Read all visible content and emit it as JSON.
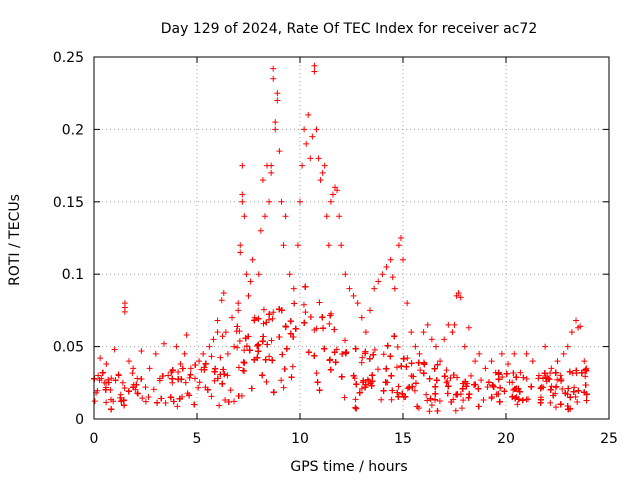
{
  "chart_data": {
    "type": "scatter",
    "title": "Day 129 of 2024, Rate Of TEC Index for receiver ac72",
    "xlabel": "GPS time / hours",
    "ylabel": "ROTI / TECUs",
    "xlim": [
      0,
      25
    ],
    "ylim": [
      0,
      0.25
    ],
    "x_ticks": [
      0,
      5,
      10,
      15,
      20,
      25
    ],
    "x_tick_labels": [
      "0",
      "5",
      "10",
      "15",
      "20",
      "25"
    ],
    "y_ticks": [
      0,
      0.05,
      0.1,
      0.15,
      0.2,
      0.25
    ],
    "y_tick_labels": [
      "0",
      "0.05",
      "0.1",
      "0.15",
      "0.2",
      "0.25"
    ],
    "grid": true,
    "marker": "+",
    "color": "#ff0000",
    "series": [
      {
        "name": "ROTI",
        "points": [
          [
            0.1,
            0.018
          ],
          [
            0.2,
            0.03
          ],
          [
            0.3,
            0.042
          ],
          [
            0.5,
            0.025
          ],
          [
            0.6,
            0.038
          ],
          [
            0.8,
            0.02
          ],
          [
            1.0,
            0.048
          ],
          [
            1.2,
            0.03
          ],
          [
            1.4,
            0.025
          ],
          [
            1.5,
            0.08
          ],
          [
            1.5,
            0.077
          ],
          [
            1.5,
            0.074
          ],
          [
            1.7,
            0.04
          ],
          [
            1.9,
            0.035
          ],
          [
            2.1,
            0.028
          ],
          [
            2.3,
            0.047
          ],
          [
            2.5,
            0.022
          ],
          [
            2.7,
            0.035
          ],
          [
            3.0,
            0.045
          ],
          [
            3.2,
            0.028
          ],
          [
            3.4,
            0.052
          ],
          [
            3.6,
            0.03
          ],
          [
            3.8,
            0.025
          ],
          [
            4.0,
            0.05
          ],
          [
            4.2,
            0.038
          ],
          [
            4.4,
            0.045
          ],
          [
            4.5,
            0.058
          ],
          [
            4.7,
            0.035
          ],
          [
            4.9,
            0.028
          ],
          [
            5.1,
            0.04
          ],
          [
            5.3,
            0.045
          ],
          [
            5.6,
            0.05
          ],
          [
            5.8,
            0.055
          ],
          [
            6.0,
            0.06
          ],
          [
            6.0,
            0.068
          ],
          [
            6.2,
            0.082
          ],
          [
            6.3,
            0.087
          ],
          [
            6.4,
            0.06
          ],
          [
            6.5,
            0.045
          ],
          [
            6.7,
            0.07
          ],
          [
            6.8,
            0.05
          ],
          [
            7.0,
            0.08
          ],
          [
            7.0,
            0.075
          ],
          [
            7.1,
            0.12
          ],
          [
            7.1,
            0.115
          ],
          [
            7.2,
            0.15
          ],
          [
            7.2,
            0.155
          ],
          [
            7.2,
            0.175
          ],
          [
            7.3,
            0.14
          ],
          [
            7.4,
            0.1
          ],
          [
            7.5,
            0.085
          ],
          [
            7.6,
            0.095
          ],
          [
            7.7,
            0.11
          ],
          [
            7.8,
            0.07
          ],
          [
            8.0,
            0.1
          ],
          [
            8.1,
            0.13
          ],
          [
            8.2,
            0.165
          ],
          [
            8.3,
            0.14
          ],
          [
            8.4,
            0.175
          ],
          [
            8.5,
            0.15
          ],
          [
            8.6,
            0.17
          ],
          [
            8.6,
            0.175
          ],
          [
            8.7,
            0.235
          ],
          [
            8.7,
            0.242
          ],
          [
            8.8,
            0.2
          ],
          [
            8.8,
            0.205
          ],
          [
            8.9,
            0.22
          ],
          [
            8.9,
            0.225
          ],
          [
            9.0,
            0.185
          ],
          [
            9.1,
            0.15
          ],
          [
            9.2,
            0.12
          ],
          [
            9.3,
            0.14
          ],
          [
            9.5,
            0.1
          ],
          [
            9.7,
            0.09
          ],
          [
            9.9,
            0.12
          ],
          [
            10.0,
            0.15
          ],
          [
            10.1,
            0.175
          ],
          [
            10.2,
            0.2
          ],
          [
            10.3,
            0.19
          ],
          [
            10.4,
            0.21
          ],
          [
            10.5,
            0.18
          ],
          [
            10.6,
            0.195
          ],
          [
            10.7,
            0.24
          ],
          [
            10.7,
            0.244
          ],
          [
            10.8,
            0.2
          ],
          [
            10.9,
            0.18
          ],
          [
            11.0,
            0.165
          ],
          [
            11.1,
            0.17
          ],
          [
            11.2,
            0.175
          ],
          [
            11.3,
            0.14
          ],
          [
            11.4,
            0.12
          ],
          [
            11.5,
            0.15
          ],
          [
            11.6,
            0.155
          ],
          [
            11.7,
            0.16
          ],
          [
            11.8,
            0.158
          ],
          [
            11.9,
            0.14
          ],
          [
            12.0,
            0.12
          ],
          [
            12.2,
            0.1
          ],
          [
            12.4,
            0.09
          ],
          [
            12.6,
            0.085
          ],
          [
            12.8,
            0.08
          ],
          [
            13.0,
            0.07
          ],
          [
            13.2,
            0.06
          ],
          [
            13.4,
            0.075
          ],
          [
            13.6,
            0.09
          ],
          [
            13.8,
            0.095
          ],
          [
            14.0,
            0.1
          ],
          [
            14.2,
            0.105
          ],
          [
            14.4,
            0.11
          ],
          [
            14.5,
            0.098
          ],
          [
            14.6,
            0.09
          ],
          [
            14.8,
            0.12
          ],
          [
            14.9,
            0.125
          ],
          [
            15.0,
            0.11
          ],
          [
            15.2,
            0.08
          ],
          [
            15.4,
            0.06
          ],
          [
            15.6,
            0.05
          ],
          [
            15.8,
            0.045
          ],
          [
            16.0,
            0.06
          ],
          [
            16.2,
            0.065
          ],
          [
            16.4,
            0.055
          ],
          [
            16.6,
            0.05
          ],
          [
            16.8,
            0.04
          ],
          [
            17.0,
            0.055
          ],
          [
            17.2,
            0.065
          ],
          [
            17.4,
            0.06
          ],
          [
            17.5,
            0.065
          ],
          [
            17.6,
            0.085
          ],
          [
            17.7,
            0.087
          ],
          [
            17.8,
            0.084
          ],
          [
            18.0,
            0.05
          ],
          [
            18.2,
            0.063
          ],
          [
            18.5,
            0.04
          ],
          [
            18.7,
            0.045
          ],
          [
            19.0,
            0.035
          ],
          [
            19.3,
            0.04
          ],
          [
            19.5,
            0.032
          ],
          [
            19.8,
            0.045
          ],
          [
            20.1,
            0.038
          ],
          [
            20.4,
            0.045
          ],
          [
            20.7,
            0.032
          ],
          [
            21.0,
            0.045
          ],
          [
            21.3,
            0.04
          ],
          [
            21.6,
            0.03
          ],
          [
            21.9,
            0.05
          ],
          [
            22.2,
            0.035
          ],
          [
            22.5,
            0.04
          ],
          [
            22.8,
            0.045
          ],
          [
            23.0,
            0.05
          ],
          [
            23.2,
            0.06
          ],
          [
            23.4,
            0.068
          ],
          [
            23.5,
            0.063
          ],
          [
            23.6,
            0.064
          ],
          [
            23.8,
            0.04
          ],
          [
            23.9,
            0.035
          ]
        ],
        "dense_band": {
          "knots_hours": [
            0,
            1,
            2,
            3,
            4,
            5,
            5.5,
            6,
            6.5,
            7,
            7.5,
            8,
            8.5,
            9,
            9.5,
            10,
            10.5,
            11,
            11.5,
            12,
            12.5,
            13,
            13.5,
            14,
            14.5,
            15,
            15.5,
            16,
            16.5,
            17,
            18,
            19,
            20,
            21,
            22,
            23,
            24
          ],
          "lower": [
            0.005,
            0.005,
            0.005,
            0.005,
            0.005,
            0.005,
            0.006,
            0.006,
            0.007,
            0.008,
            0.008,
            0.009,
            0.01,
            0.01,
            0.01,
            0.012,
            0.012,
            0.01,
            0.009,
            0.008,
            0.007,
            0.006,
            0.006,
            0.006,
            0.006,
            0.005,
            0.005,
            0.005,
            0.005,
            0.005,
            0.005,
            0.005,
            0.005,
            0.005,
            0.005,
            0.005,
            0.005
          ],
          "upper": [
            0.03,
            0.035,
            0.03,
            0.032,
            0.035,
            0.04,
            0.045,
            0.055,
            0.06,
            0.07,
            0.075,
            0.09,
            0.1,
            0.09,
            0.075,
            0.1,
            0.12,
            0.1,
            0.085,
            0.07,
            0.055,
            0.05,
            0.055,
            0.07,
            0.075,
            0.065,
            0.045,
            0.04,
            0.04,
            0.035,
            0.035,
            0.03,
            0.032,
            0.03,
            0.03,
            0.035,
            0.035
          ],
          "peak": [
            0.02,
            0.02,
            0.02,
            0.02,
            0.022,
            0.025,
            0.028,
            0.03,
            0.033,
            0.037,
            0.04,
            0.048,
            0.055,
            0.05,
            0.045,
            0.055,
            0.06,
            0.052,
            0.045,
            0.038,
            0.032,
            0.028,
            0.03,
            0.034,
            0.035,
            0.032,
            0.026,
            0.024,
            0.023,
            0.022,
            0.021,
            0.02,
            0.02,
            0.02,
            0.02,
            0.021,
            0.022
          ],
          "count": 2600
        }
      }
    ]
  }
}
